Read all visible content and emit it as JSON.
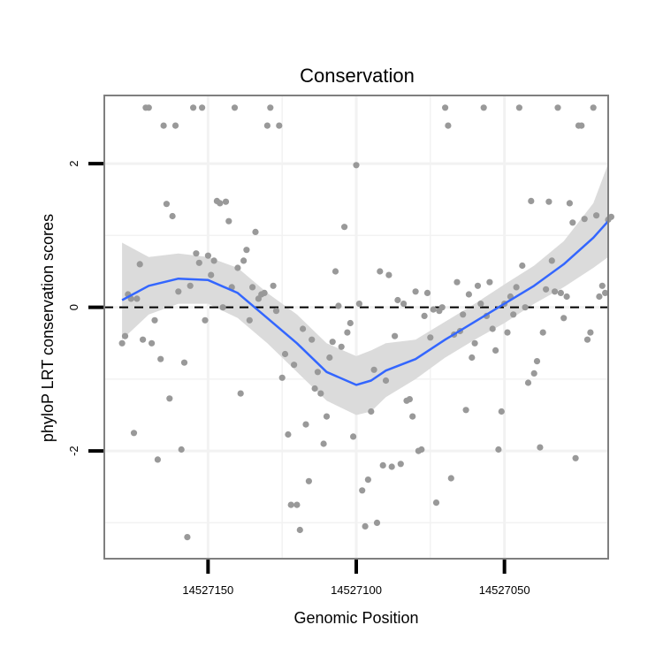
{
  "chart_data": {
    "type": "scatter",
    "title": "Conservation",
    "xlabel": "Genomic Position",
    "ylabel": "phyloP LRT conservation scores",
    "x_axis_reversed": true,
    "xlim": [
      14527185,
      14527015
    ],
    "ylim": [
      -3.5,
      2.95
    ],
    "x_ticks": [
      14527150,
      14527100,
      14527050
    ],
    "x_tick_labels": [
      "14527150",
      "14527100",
      "14527050"
    ],
    "y_ticks": [
      -2,
      0,
      2
    ],
    "y_tick_labels": [
      "-2",
      "0",
      "2"
    ],
    "grid": true,
    "reference_line": {
      "y": 0,
      "style": "dashed"
    },
    "colors": {
      "points": "#999999",
      "smooth_line": "#3366FF",
      "confidence_band": "#D9D9D9",
      "panel_border": "#7F7F7F",
      "grid": "#F2F2F2"
    },
    "series": [
      {
        "type": "scatter",
        "points": [
          [
            14527179,
            -0.5
          ],
          [
            14527178,
            -0.4
          ],
          [
            14527177,
            0.18
          ],
          [
            14527176,
            0.12
          ],
          [
            14527175,
            -1.75
          ],
          [
            14527174,
            0.12
          ],
          [
            14527173,
            0.6
          ],
          [
            14527172,
            -0.45
          ],
          [
            14527171,
            2.78
          ],
          [
            14527170,
            2.78
          ],
          [
            14527169,
            -0.5
          ],
          [
            14527168,
            -0.18
          ],
          [
            14527167,
            -2.12
          ],
          [
            14527166,
            -0.72
          ],
          [
            14527165,
            2.53
          ],
          [
            14527164,
            1.44
          ],
          [
            14527163,
            -1.27
          ],
          [
            14527162,
            1.27
          ],
          [
            14527161,
            2.53
          ],
          [
            14527160,
            0.22
          ],
          [
            14527159,
            -1.98
          ],
          [
            14527158,
            -0.77
          ],
          [
            14527157,
            -3.2
          ],
          [
            14527156,
            0.3
          ],
          [
            14527155,
            2.78
          ],
          [
            14527154,
            0.75
          ],
          [
            14527153,
            0.62
          ],
          [
            14527152,
            2.78
          ],
          [
            14527151,
            -0.18
          ],
          [
            14527150,
            0.72
          ],
          [
            14527149,
            0.45
          ],
          [
            14527148,
            0.65
          ],
          [
            14527147,
            1.48
          ],
          [
            14527146,
            1.45
          ],
          [
            14527145,
            0.0
          ],
          [
            14527144,
            1.47
          ],
          [
            14527143,
            1.2
          ],
          [
            14527142,
            0.28
          ],
          [
            14527141,
            2.78
          ],
          [
            14527140,
            0.55
          ],
          [
            14527139,
            -1.2
          ],
          [
            14527138,
            0.65
          ],
          [
            14527137,
            0.8
          ],
          [
            14527136,
            -0.18
          ],
          [
            14527135,
            0.28
          ],
          [
            14527134,
            1.05
          ],
          [
            14527133,
            0.12
          ],
          [
            14527132,
            0.18
          ],
          [
            14527131,
            0.2
          ],
          [
            14527130,
            2.53
          ],
          [
            14527129,
            2.78
          ],
          [
            14527128,
            0.3
          ],
          [
            14527127,
            -0.05
          ],
          [
            14527126,
            2.53
          ],
          [
            14527125,
            -0.98
          ],
          [
            14527124,
            -0.65
          ],
          [
            14527123,
            -1.77
          ],
          [
            14527122,
            -2.75
          ],
          [
            14527121,
            -0.8
          ],
          [
            14527120,
            -2.75
          ],
          [
            14527119,
            -3.1
          ],
          [
            14527118,
            -0.3
          ],
          [
            14527117,
            -1.63
          ],
          [
            14527116,
            -2.42
          ],
          [
            14527115,
            -0.45
          ],
          [
            14527114,
            -1.13
          ],
          [
            14527113,
            -0.9
          ],
          [
            14527112,
            -1.2
          ],
          [
            14527111,
            -1.9
          ],
          [
            14527110,
            -1.52
          ],
          [
            14527109,
            -0.7
          ],
          [
            14527108,
            -0.48
          ],
          [
            14527107,
            0.5
          ],
          [
            14527106,
            0.02
          ],
          [
            14527105,
            -0.55
          ],
          [
            14527104,
            1.12
          ],
          [
            14527103,
            -0.35
          ],
          [
            14527102,
            -0.22
          ],
          [
            14527101,
            -1.8
          ],
          [
            14527100,
            1.98
          ],
          [
            14527099,
            0.05
          ],
          [
            14527098,
            -2.55
          ],
          [
            14527097,
            -3.05
          ],
          [
            14527096,
            -2.4
          ],
          [
            14527095,
            -1.45
          ],
          [
            14527094,
            -0.87
          ],
          [
            14527093,
            -3.0
          ],
          [
            14527092,
            0.5
          ],
          [
            14527091,
            -2.2
          ],
          [
            14527090,
            -1.02
          ],
          [
            14527089,
            0.45
          ],
          [
            14527088,
            -2.22
          ],
          [
            14527087,
            -0.4
          ],
          [
            14527086,
            0.1
          ],
          [
            14527085,
            -2.18
          ],
          [
            14527084,
            0.05
          ],
          [
            14527083,
            -1.3
          ],
          [
            14527082,
            -1.28
          ],
          [
            14527081,
            -1.52
          ],
          [
            14527080,
            0.22
          ],
          [
            14527079,
            -2.0
          ],
          [
            14527078,
            -1.98
          ],
          [
            14527077,
            -0.12
          ],
          [
            14527076,
            0.2
          ],
          [
            14527075,
            -0.42
          ],
          [
            14527074,
            -0.03
          ],
          [
            14527073,
            -2.72
          ],
          [
            14527072,
            -0.05
          ],
          [
            14527071,
            0.0
          ],
          [
            14527070,
            2.78
          ],
          [
            14527069,
            2.53
          ],
          [
            14527068,
            -2.38
          ],
          [
            14527067,
            -0.38
          ],
          [
            14527066,
            0.35
          ],
          [
            14527065,
            -0.33
          ],
          [
            14527064,
            -0.1
          ],
          [
            14527063,
            -1.43
          ],
          [
            14527062,
            0.18
          ],
          [
            14527061,
            -0.7
          ],
          [
            14527060,
            -0.5
          ],
          [
            14527059,
            0.3
          ],
          [
            14527058,
            0.05
          ],
          [
            14527057,
            2.78
          ],
          [
            14527056,
            -0.12
          ],
          [
            14527055,
            0.35
          ],
          [
            14527054,
            -0.3
          ],
          [
            14527053,
            -0.6
          ],
          [
            14527052,
            -1.98
          ],
          [
            14527051,
            -1.45
          ],
          [
            14527050,
            0.05
          ],
          [
            14527049,
            -0.35
          ],
          [
            14527048,
            0.15
          ],
          [
            14527047,
            -0.1
          ],
          [
            14527046,
            0.28
          ],
          [
            14527045,
            2.78
          ],
          [
            14527044,
            0.58
          ],
          [
            14527043,
            0.0
          ],
          [
            14527042,
            -1.05
          ],
          [
            14527041,
            1.48
          ],
          [
            14527040,
            -0.92
          ],
          [
            14527039,
            -0.75
          ],
          [
            14527038,
            -1.95
          ],
          [
            14527037,
            -0.35
          ],
          [
            14527036,
            0.25
          ],
          [
            14527035,
            1.47
          ],
          [
            14527034,
            0.65
          ],
          [
            14527033,
            0.22
          ],
          [
            14527032,
            2.78
          ],
          [
            14527031,
            0.2
          ],
          [
            14527030,
            -0.15
          ],
          [
            14527029,
            0.15
          ],
          [
            14527028,
            1.45
          ],
          [
            14527027,
            1.18
          ],
          [
            14527026,
            -2.1
          ],
          [
            14527025,
            2.53
          ],
          [
            14527024,
            2.53
          ],
          [
            14527023,
            1.23
          ],
          [
            14527022,
            -0.45
          ],
          [
            14527021,
            -0.35
          ],
          [
            14527020,
            2.78
          ],
          [
            14527019,
            1.28
          ],
          [
            14527018,
            0.15
          ],
          [
            14527017,
            0.3
          ],
          [
            14527016,
            0.2
          ],
          [
            14527015,
            1.22
          ],
          [
            14527014,
            1.26
          ]
        ]
      },
      {
        "type": "line",
        "smooth": true,
        "x": [
          14527179,
          14527170,
          14527160,
          14527150,
          14527140,
          14527130,
          14527120,
          14527110,
          14527100,
          14527095,
          14527090,
          14527080,
          14527070,
          14527060,
          14527050,
          14527040,
          14527030,
          14527020,
          14527015
        ],
        "y": [
          0.1,
          0.3,
          0.4,
          0.38,
          0.2,
          -0.15,
          -0.5,
          -0.9,
          -1.08,
          -1.02,
          -0.88,
          -0.72,
          -0.45,
          -0.2,
          0.05,
          0.3,
          0.6,
          0.97,
          1.2
        ],
        "lower": [
          -0.45,
          -0.1,
          0.05,
          0.05,
          -0.15,
          -0.5,
          -0.9,
          -1.3,
          -1.5,
          -1.45,
          -1.25,
          -1.0,
          -0.7,
          -0.45,
          -0.22,
          0.05,
          0.28,
          0.55,
          0.7
        ],
        "upper": [
          0.9,
          0.7,
          0.75,
          0.7,
          0.55,
          0.2,
          -0.1,
          -0.5,
          -0.68,
          -0.6,
          -0.5,
          -0.45,
          -0.2,
          0.05,
          0.32,
          0.58,
          0.92,
          1.45,
          2.0
        ]
      }
    ]
  }
}
